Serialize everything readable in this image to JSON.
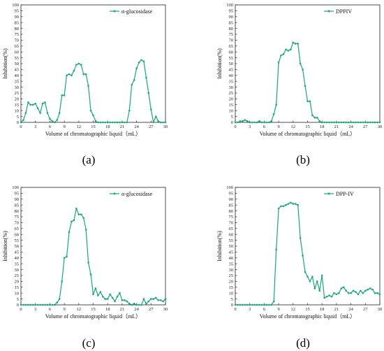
{
  "figure": {
    "panels": [
      {
        "label": "(a)"
      },
      {
        "label": "(b)"
      },
      {
        "label": "(c)"
      },
      {
        "label": "(d)"
      }
    ]
  },
  "colors": {
    "series": "#1aa878",
    "axis": "#222222"
  },
  "chart_data": [
    {
      "type": "line",
      "title": "",
      "xlabel": "Volume of chromatographic liquid（mL）",
      "ylabel": "Inhibition(%)",
      "xlim": [
        0,
        30
      ],
      "ylim": [
        0,
        100
      ],
      "xticks": [
        0,
        3,
        6,
        9,
        12,
        15,
        18,
        21,
        24,
        27,
        30
      ],
      "yticks": [
        0,
        5,
        10,
        15,
        20,
        25,
        30,
        35,
        40,
        45,
        50,
        55,
        60,
        65,
        70,
        75,
        80,
        85,
        90,
        95,
        100
      ],
      "grid": false,
      "legend_position": "top-right",
      "series": [
        {
          "name": "α-glucosidase",
          "x": [
            0,
            0.5,
            1,
            1.5,
            2,
            2.5,
            3,
            3.5,
            4,
            4.5,
            5,
            5.5,
            6,
            6.5,
            7,
            7.5,
            8,
            8.5,
            9,
            9.5,
            10,
            10.5,
            11,
            11.5,
            12,
            12.5,
            13,
            13.5,
            14,
            14.5,
            15,
            15.5,
            16,
            16.5,
            17,
            17.5,
            18,
            18.5,
            19,
            19.5,
            20,
            20.5,
            21,
            21.5,
            22,
            22.5,
            23,
            23.5,
            24,
            24.5,
            25,
            25.5,
            26,
            26.5,
            27,
            27.5,
            28,
            28.5,
            29,
            29.5,
            30
          ],
          "y": [
            0,
            2,
            8,
            17,
            15,
            15,
            16,
            12,
            8,
            16,
            17,
            8,
            3,
            1,
            0,
            2,
            8,
            23,
            23,
            40,
            41,
            40,
            44,
            49,
            50,
            49,
            41,
            41,
            31,
            10,
            6,
            1,
            0,
            0,
            0,
            0,
            0,
            0,
            0,
            0,
            0,
            0,
            0,
            0,
            0,
            10,
            32,
            36,
            46,
            51,
            53,
            52,
            38,
            25,
            11,
            0,
            5,
            1,
            0,
            0,
            0
          ]
        }
      ]
    },
    {
      "type": "line",
      "title": "",
      "xlabel": "Volume of chromatographic liquid（mL）",
      "ylabel": "Inhibition(%)",
      "xlim": [
        0,
        30
      ],
      "ylim": [
        0,
        100
      ],
      "xticks": [
        0,
        3,
        6,
        9,
        12,
        15,
        18,
        21,
        24,
        27,
        30
      ],
      "yticks": [
        0,
        5,
        10,
        15,
        20,
        25,
        30,
        35,
        40,
        45,
        50,
        55,
        60,
        65,
        70,
        75,
        80,
        85,
        90,
        95,
        100
      ],
      "grid": false,
      "legend_position": "top-right",
      "series": [
        {
          "name": "DPPIV",
          "x": [
            0,
            0.5,
            1,
            1.5,
            2,
            2.5,
            3,
            3.5,
            4,
            4.5,
            5,
            5.5,
            6,
            6.5,
            7,
            7.5,
            8,
            8.5,
            9,
            9.5,
            10,
            10.5,
            11,
            11.5,
            12,
            12.5,
            13,
            13.5,
            14,
            14.5,
            15,
            15.5,
            16,
            16.5,
            17,
            17.5,
            18,
            18.5,
            19,
            19.5,
            20,
            20.5,
            21,
            21.5,
            22,
            22.5,
            23,
            23.5,
            24,
            24.5,
            25,
            25.5,
            26,
            26.5,
            27,
            27.5,
            28,
            28.5,
            29,
            29.5,
            30
          ],
          "y": [
            0,
            0,
            1,
            1,
            2,
            1,
            0,
            0,
            0,
            0,
            1,
            0,
            0,
            0,
            0,
            1,
            7,
            15,
            51,
            57,
            58,
            62,
            61,
            62,
            68,
            67,
            67,
            50,
            45,
            31,
            18,
            18,
            6,
            4,
            4,
            1,
            0,
            0,
            0,
            0,
            0,
            0,
            0,
            0,
            0,
            0,
            0,
            0,
            0,
            0,
            0,
            0,
            0,
            0,
            0,
            0,
            0,
            0,
            0,
            0,
            0
          ]
        }
      ]
    },
    {
      "type": "line",
      "title": "",
      "xlabel": "Volume of chromatographic liquid（mL）",
      "ylabel": "Inhibition(%)",
      "xlim": [
        0,
        30
      ],
      "ylim": [
        0,
        100
      ],
      "xticks": [
        0,
        3,
        6,
        9,
        12,
        15,
        18,
        21,
        24,
        27,
        30
      ],
      "yticks": [
        0,
        5,
        10,
        15,
        20,
        25,
        30,
        35,
        40,
        45,
        50,
        55,
        60,
        65,
        70,
        75,
        80,
        85,
        90,
        95,
        100
      ],
      "grid": false,
      "legend_position": "top-right",
      "series": [
        {
          "name": "α-glucosidase",
          "x": [
            0,
            0.5,
            1,
            1.5,
            2,
            2.5,
            3,
            3.5,
            4,
            4.5,
            5,
            5.5,
            6,
            6.5,
            7,
            7.5,
            8,
            8.5,
            9,
            9.5,
            10,
            10.5,
            11,
            11.5,
            12,
            12.5,
            13,
            13.5,
            14,
            14.5,
            15,
            15.5,
            16,
            16.5,
            17,
            17.5,
            18,
            18.5,
            19,
            19.5,
            20,
            20.5,
            21,
            21.5,
            22,
            22.5,
            23,
            23.5,
            24,
            24.5,
            25,
            25.5,
            26,
            26.5,
            27,
            27.5,
            28,
            28.5,
            29,
            29.5,
            30
          ],
          "y": [
            0,
            0,
            0,
            0,
            0,
            0,
            0,
            0,
            0,
            0,
            0,
            0,
            0,
            0,
            0,
            2,
            5,
            20,
            40,
            41,
            62,
            71,
            72,
            82,
            77,
            77,
            74,
            64,
            36,
            26,
            9,
            14,
            8,
            11,
            7,
            5,
            5,
            9,
            6,
            3,
            7,
            10,
            4,
            4,
            3,
            1,
            0,
            1,
            0,
            0,
            0,
            5,
            1,
            3,
            5,
            5,
            6,
            4,
            4,
            3,
            5
          ]
        }
      ]
    },
    {
      "type": "line",
      "title": "",
      "xlabel": "Volume of chromatographic liquid（mL）",
      "ylabel": "Inhibition(%)",
      "xlim": [
        0,
        30
      ],
      "ylim": [
        0,
        100
      ],
      "xticks": [
        0,
        3,
        6,
        9,
        12,
        15,
        18,
        21,
        24,
        27,
        30
      ],
      "yticks": [
        0,
        5,
        10,
        15,
        20,
        25,
        30,
        35,
        40,
        45,
        50,
        55,
        60,
        65,
        70,
        75,
        80,
        85,
        90,
        95,
        100
      ],
      "grid": false,
      "legend_position": "top-right",
      "series": [
        {
          "name": "DPP-IV",
          "x": [
            0,
            0.5,
            1,
            1.5,
            2,
            2.5,
            3,
            3.5,
            4,
            4.5,
            5,
            5.5,
            6,
            6.5,
            7,
            7.5,
            8,
            8.5,
            9,
            9.5,
            10,
            10.5,
            11,
            11.5,
            12,
            12.5,
            13,
            13.5,
            14,
            14.5,
            15,
            15.5,
            16,
            16.5,
            17,
            17.5,
            18,
            18.5,
            19,
            19.5,
            20,
            20.5,
            21,
            21.5,
            22,
            22.5,
            23,
            23.5,
            24,
            24.5,
            25,
            25.5,
            26,
            26.5,
            27,
            27.5,
            28,
            28.5,
            29,
            29.5,
            30
          ],
          "y": [
            0,
            0,
            0,
            0,
            0,
            0,
            0,
            0,
            0,
            0,
            0,
            0,
            0,
            0,
            0,
            0,
            3,
            47,
            82,
            84,
            84,
            85,
            86,
            87,
            86,
            86,
            85,
            57,
            42,
            28,
            24,
            20,
            24,
            14,
            20,
            12,
            25,
            6,
            7,
            8,
            7,
            10,
            9,
            10,
            14,
            15,
            12,
            10,
            10,
            12,
            11,
            9,
            12,
            10,
            12,
            13,
            14,
            13,
            10,
            10,
            9
          ]
        }
      ]
    }
  ]
}
